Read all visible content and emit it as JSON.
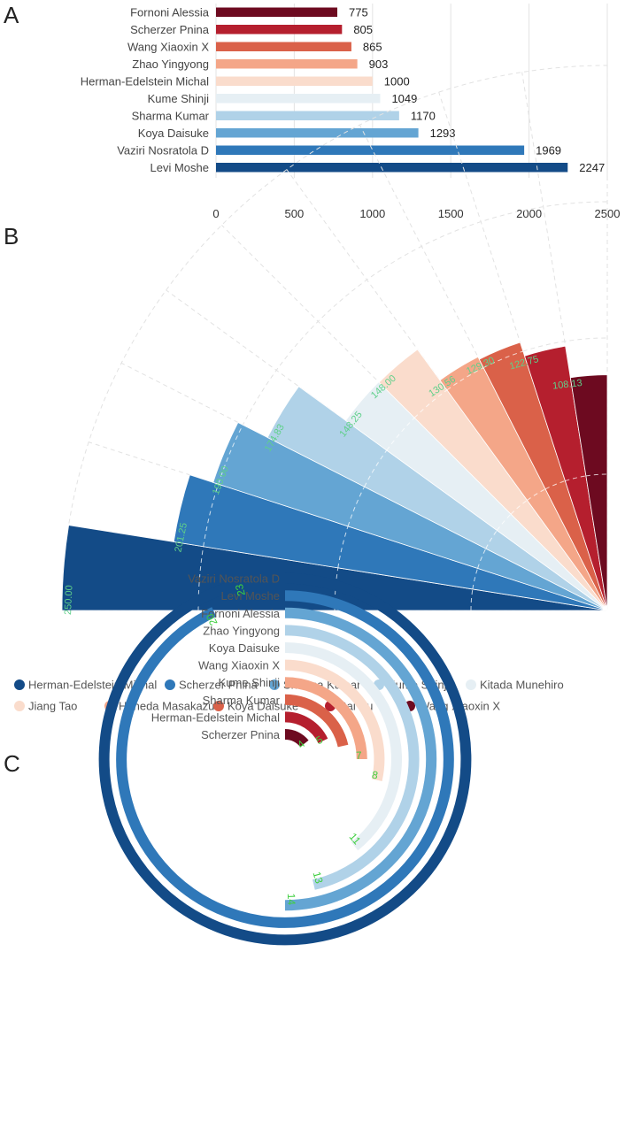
{
  "panels": [
    "A",
    "B",
    "C"
  ],
  "colors": [
    "#134b87",
    "#2f78b9",
    "#64a5d3",
    "#b0d2e8",
    "#e6eff4",
    "#fadccc",
    "#f4a688",
    "#da6149",
    "#b51f2e",
    "#6d0a20"
  ],
  "chart_data": [
    {
      "type": "bar",
      "orientation": "horizontal",
      "panel": "A",
      "categories": [
        "Fornoni Alessia",
        "Scherzer Pnina",
        "Wang Xiaoxin X",
        "Zhao Yingyong",
        "Herman-Edelstein Michal",
        "Kume Shinji",
        "Sharma Kumar",
        "Koya Daisuke",
        "Vaziri Nosratola D",
        "Levi Moshe"
      ],
      "values": [
        775,
        805,
        865,
        903,
        1000,
        1049,
        1170,
        1293,
        1969,
        2247
      ],
      "value_labels": [
        "775",
        "805",
        "865",
        "903",
        "1000",
        "1049",
        "1170",
        "1293",
        "1969",
        "2247"
      ],
      "bar_colors": [
        "#6d0a20",
        "#b51f2e",
        "#da6149",
        "#f4a688",
        "#fadccc",
        "#e6eff4",
        "#b0d2e8",
        "#64a5d3",
        "#2f78b9",
        "#134b87"
      ],
      "xlim": [
        0,
        2500
      ],
      "xticks": [
        "0",
        "500",
        "1000",
        "1500",
        "2000",
        "2500"
      ],
      "grid": true
    },
    {
      "type": "bar",
      "polar": "rose",
      "panel": "B",
      "categories": [
        "Herman-Edelstein Michal",
        "Scherzer Pnina",
        "Sharma Kumar",
        "Kume Shinji",
        "Kitada Munehiro",
        "Jiang Tao",
        "Haneda Masakazu",
        "Koya Daisuke",
        "Bai Xu",
        "Wang Xiaoxin X"
      ],
      "values": [
        250.0,
        201.25,
        190.0,
        174.83,
        148.25,
        148.0,
        130.56,
        129.3,
        122.75,
        108.13
      ],
      "value_labels": [
        "250.00",
        "201.25",
        "190.00",
        "174.83",
        "148.25",
        "148.00",
        "130.56",
        "129.30",
        "122.75",
        "108.13"
      ],
      "legend": [
        "Herman-Edelstein Michal",
        "Scherzer Pnina",
        "Sharma Kumar",
        "Kume Shinji",
        "Kitada Munehiro",
        "Jiang Tao",
        "Haneda Masakazu",
        "Koya Daisuke",
        "Bai Xu",
        "Wang Xiaoxin X"
      ],
      "legend_position": "bottom",
      "angle_range_deg": [
        0,
        90
      ],
      "rmax": 250
    },
    {
      "type": "bar",
      "polar": "radial",
      "panel": "C",
      "categories": [
        "Vaziri Nosratola D",
        "Levi Moshe",
        "Fornoni Alessia",
        "Zhao Yingyong",
        "Koya Daisuke",
        "Wang Xiaoxin X",
        "Kume Shinji",
        "Sharma Kumar",
        "Herman-Edelstein Michal",
        "Scherzer Pnina"
      ],
      "values": [
        27,
        26,
        14,
        13,
        11,
        8,
        7,
        6,
        5,
        4
      ],
      "value_labels": [
        "",
        "",
        "14",
        "13",
        "11",
        "8",
        "7",
        "",
        "5",
        "4"
      ],
      "full_scale": 28
    }
  ]
}
